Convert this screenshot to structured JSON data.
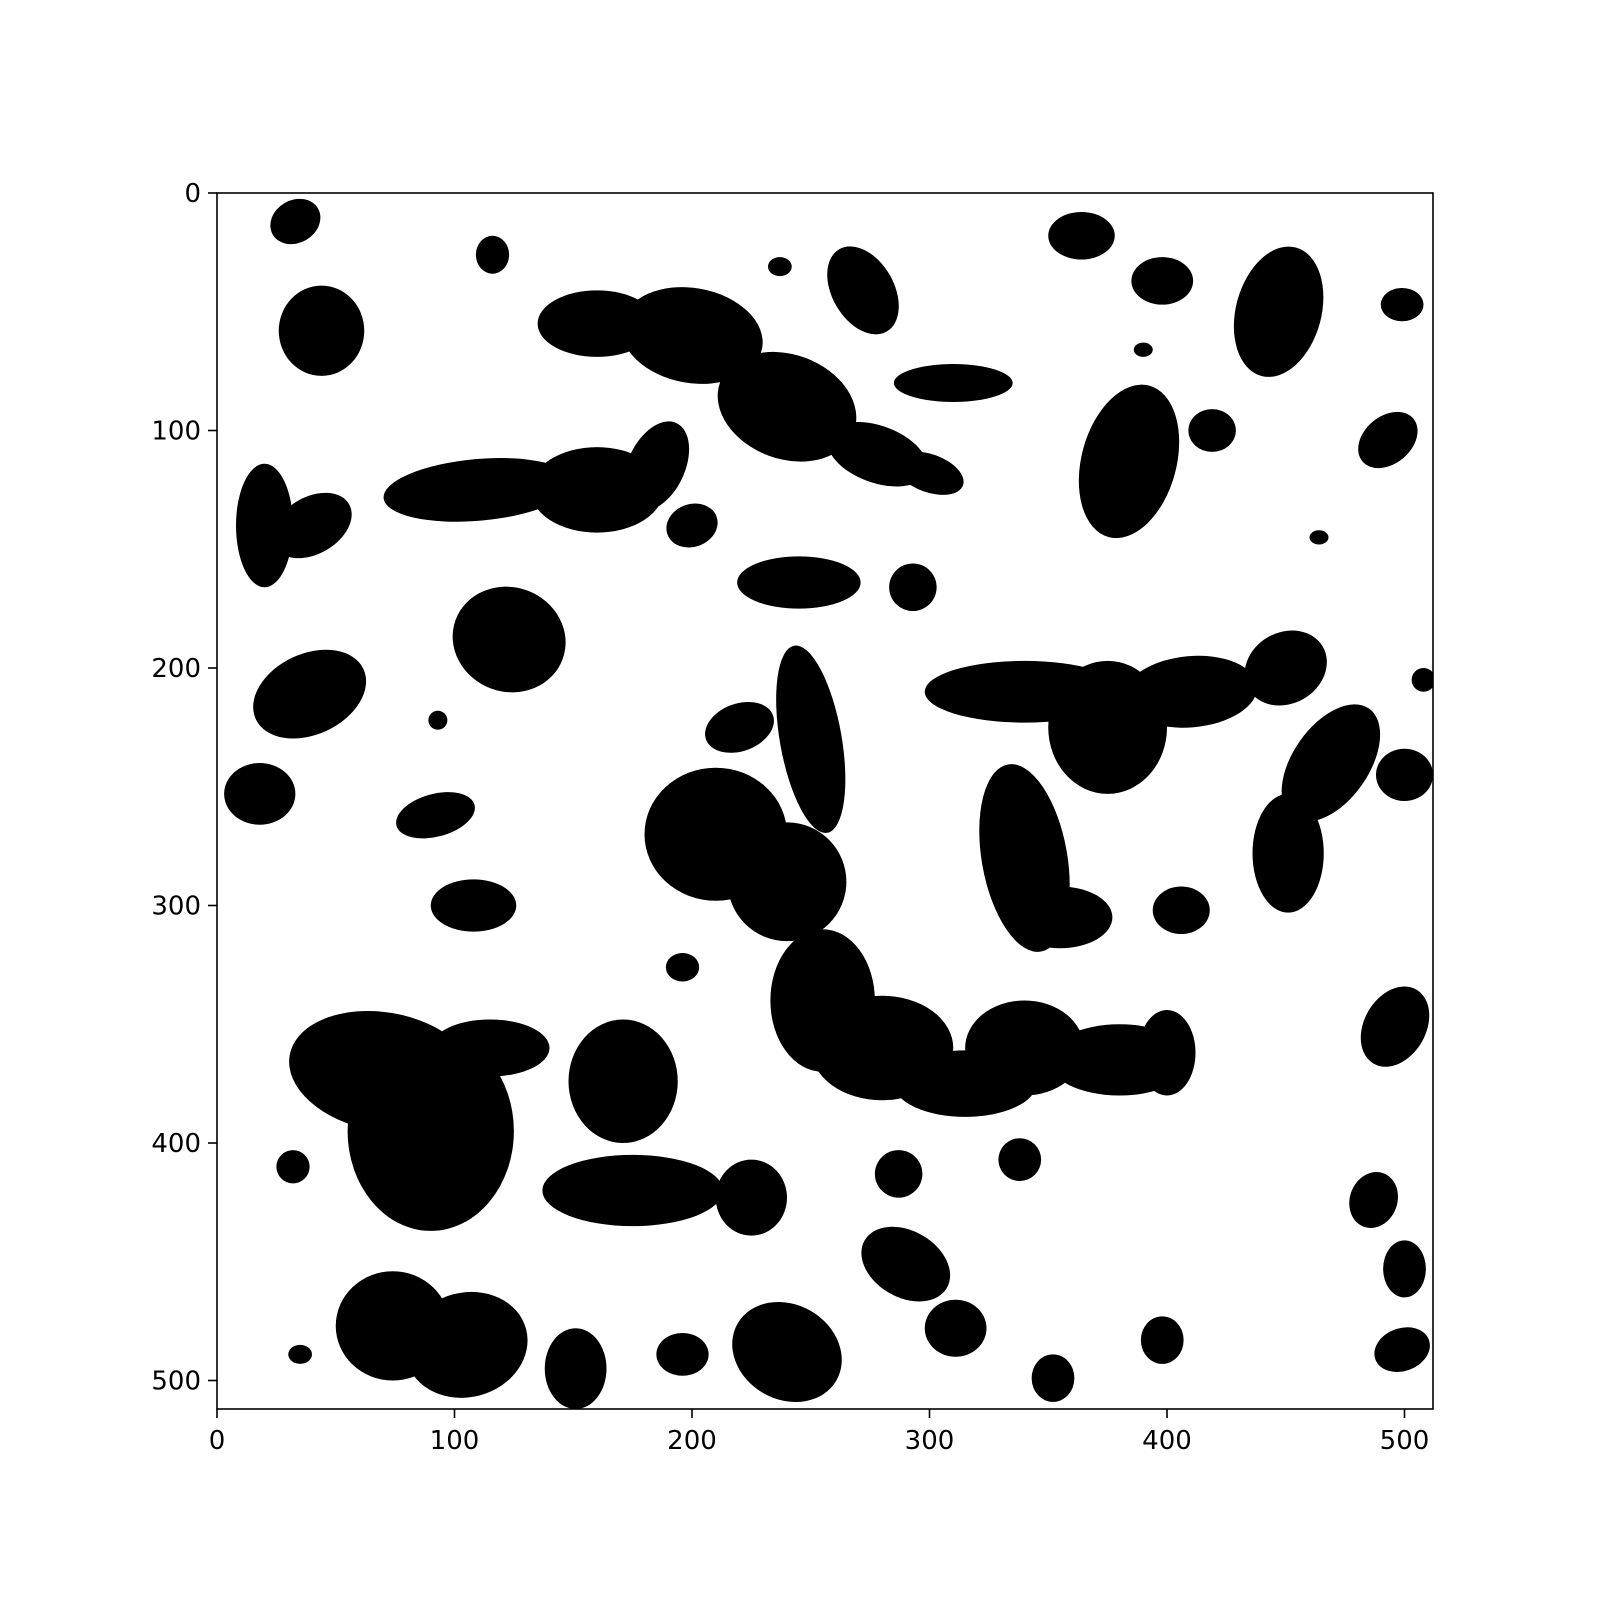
{
  "chart_data": {
    "type": "heatmap",
    "title": "",
    "xlabel": "",
    "ylabel": "",
    "xlim": [
      0,
      512
    ],
    "ylim": [
      512,
      0
    ],
    "x_ticks": [
      0,
      100,
      200,
      300,
      400,
      500
    ],
    "y_ticks": [
      0,
      100,
      200,
      300,
      400,
      500
    ],
    "x_tick_labels": [
      "0",
      "100",
      "200",
      "300",
      "400",
      "500"
    ],
    "y_tick_labels": [
      "0",
      "100",
      "200",
      "300",
      "400",
      "500"
    ],
    "colormap": "binary",
    "colors": {
      "foreground": "#000000",
      "background": "#ffffff"
    },
    "grid": false,
    "description_of_values": "binary 512x512 image; black regions (value 1) listed as approximate blobs in pixel units",
    "blobs": [
      {
        "cx": 33,
        "cy": 12,
        "rx": 11,
        "ry": 9,
        "rot": -30
      },
      {
        "cx": 116,
        "cy": 26,
        "rx": 7,
        "ry": 8,
        "rot": 0
      },
      {
        "cx": 44,
        "cy": 58,
        "rx": 18,
        "ry": 19,
        "rot": 0
      },
      {
        "cx": 237,
        "cy": 31,
        "rx": 5,
        "ry": 4,
        "rot": 0
      },
      {
        "cx": 272,
        "cy": 41,
        "rx": 13,
        "ry": 20,
        "rot": -30
      },
      {
        "cx": 364,
        "cy": 18,
        "rx": 14,
        "ry": 10,
        "rot": 0
      },
      {
        "cx": 398,
        "cy": 37,
        "rx": 13,
        "ry": 10,
        "rot": 0
      },
      {
        "cx": 447,
        "cy": 50,
        "rx": 18,
        "ry": 28,
        "rot": 15
      },
      {
        "cx": 499,
        "cy": 47,
        "rx": 9,
        "ry": 7,
        "rot": 0
      },
      {
        "cx": 390,
        "cy": 66,
        "rx": 4,
        "ry": 3,
        "rot": 0
      },
      {
        "cx": 160,
        "cy": 55,
        "rx": 25,
        "ry": 14,
        "rot": 0
      },
      {
        "cx": 200,
        "cy": 60,
        "rx": 30,
        "ry": 20,
        "rot": 10
      },
      {
        "cx": 240,
        "cy": 90,
        "rx": 30,
        "ry": 22,
        "rot": 20
      },
      {
        "cx": 278,
        "cy": 110,
        "rx": 22,
        "ry": 12,
        "rot": 20
      },
      {
        "cx": 300,
        "cy": 118,
        "rx": 15,
        "ry": 8,
        "rot": 20
      },
      {
        "cx": 310,
        "cy": 80,
        "rx": 25,
        "ry": 8,
        "rot": 0
      },
      {
        "cx": 384,
        "cy": 113,
        "rx": 20,
        "ry": 33,
        "rot": 15
      },
      {
        "cx": 419,
        "cy": 100,
        "rx": 10,
        "ry": 9,
        "rot": 0
      },
      {
        "cx": 493,
        "cy": 104,
        "rx": 14,
        "ry": 10,
        "rot": -40
      },
      {
        "cx": 464,
        "cy": 145,
        "rx": 4,
        "ry": 3,
        "rot": 0
      },
      {
        "cx": 20,
        "cy": 140,
        "rx": 12,
        "ry": 26,
        "rot": 0
      },
      {
        "cx": 40,
        "cy": 140,
        "rx": 18,
        "ry": 12,
        "rot": -30
      },
      {
        "cx": 110,
        "cy": 125,
        "rx": 40,
        "ry": 13,
        "rot": -5
      },
      {
        "cx": 160,
        "cy": 125,
        "rx": 28,
        "ry": 18,
        "rot": 0
      },
      {
        "cx": 185,
        "cy": 115,
        "rx": 12,
        "ry": 20,
        "rot": 25
      },
      {
        "cx": 200,
        "cy": 140,
        "rx": 11,
        "ry": 9,
        "rot": -20
      },
      {
        "cx": 245,
        "cy": 164,
        "rx": 26,
        "ry": 11,
        "rot": 0
      },
      {
        "cx": 293,
        "cy": 166,
        "rx": 10,
        "ry": 10,
        "rot": 0
      },
      {
        "cx": 123,
        "cy": 188,
        "rx": 24,
        "ry": 22,
        "rot": 20
      },
      {
        "cx": 39,
        "cy": 211,
        "rx": 25,
        "ry": 17,
        "rot": -25
      },
      {
        "cx": 93,
        "cy": 222,
        "rx": 4,
        "ry": 4,
        "rot": 0
      },
      {
        "cx": 18,
        "cy": 253,
        "rx": 15,
        "ry": 13,
        "rot": 0
      },
      {
        "cx": 92,
        "cy": 262,
        "rx": 17,
        "ry": 9,
        "rot": -15
      },
      {
        "cx": 108,
        "cy": 300,
        "rx": 18,
        "ry": 11,
        "rot": 0
      },
      {
        "cx": 196,
        "cy": 326,
        "rx": 7,
        "ry": 6,
        "rot": 0
      },
      {
        "cx": 250,
        "cy": 230,
        "rx": 13,
        "ry": 40,
        "rot": -10
      },
      {
        "cx": 220,
        "cy": 225,
        "rx": 15,
        "ry": 10,
        "rot": -20
      },
      {
        "cx": 210,
        "cy": 270,
        "rx": 30,
        "ry": 28,
        "rot": 0
      },
      {
        "cx": 240,
        "cy": 290,
        "rx": 25,
        "ry": 25,
        "rot": 0
      },
      {
        "cx": 255,
        "cy": 340,
        "rx": 22,
        "ry": 30,
        "rot": 0
      },
      {
        "cx": 280,
        "cy": 360,
        "rx": 30,
        "ry": 22,
        "rot": 0
      },
      {
        "cx": 315,
        "cy": 375,
        "rx": 30,
        "ry": 14,
        "rot": 0
      },
      {
        "cx": 340,
        "cy": 360,
        "rx": 25,
        "ry": 20,
        "rot": 0
      },
      {
        "cx": 380,
        "cy": 365,
        "rx": 30,
        "ry": 15,
        "rot": 0
      },
      {
        "cx": 400,
        "cy": 362,
        "rx": 12,
        "ry": 18,
        "rot": 0
      },
      {
        "cx": 340,
        "cy": 210,
        "rx": 42,
        "ry": 13,
        "rot": 0
      },
      {
        "cx": 375,
        "cy": 225,
        "rx": 25,
        "ry": 28,
        "rot": 0
      },
      {
        "cx": 410,
        "cy": 210,
        "rx": 28,
        "ry": 15,
        "rot": -5
      },
      {
        "cx": 450,
        "cy": 200,
        "rx": 18,
        "ry": 15,
        "rot": -30
      },
      {
        "cx": 508,
        "cy": 205,
        "rx": 5,
        "ry": 5,
        "rot": 0
      },
      {
        "cx": 469,
        "cy": 240,
        "rx": 16,
        "ry": 28,
        "rot": 35
      },
      {
        "cx": 451,
        "cy": 278,
        "rx": 15,
        "ry": 25,
        "rot": 0
      },
      {
        "cx": 500,
        "cy": 245,
        "rx": 12,
        "ry": 11,
        "rot": 0
      },
      {
        "cx": 340,
        "cy": 280,
        "rx": 18,
        "ry": 40,
        "rot": -10
      },
      {
        "cx": 355,
        "cy": 305,
        "rx": 22,
        "ry": 13,
        "rot": 0
      },
      {
        "cx": 406,
        "cy": 302,
        "rx": 12,
        "ry": 10,
        "rot": 0
      },
      {
        "cx": 70,
        "cy": 370,
        "rx": 40,
        "ry": 25,
        "rot": 10
      },
      {
        "cx": 90,
        "cy": 395,
        "rx": 35,
        "ry": 42,
        "rot": 0
      },
      {
        "cx": 115,
        "cy": 360,
        "rx": 25,
        "ry": 12,
        "rot": 0
      },
      {
        "cx": 32,
        "cy": 410,
        "rx": 7,
        "ry": 7,
        "rot": 0
      },
      {
        "cx": 171,
        "cy": 374,
        "rx": 23,
        "ry": 26,
        "rot": 0
      },
      {
        "cx": 175,
        "cy": 420,
        "rx": 38,
        "ry": 15,
        "rot": 0
      },
      {
        "cx": 225,
        "cy": 423,
        "rx": 15,
        "ry": 16,
        "rot": 0
      },
      {
        "cx": 287,
        "cy": 413,
        "rx": 10,
        "ry": 10,
        "rot": 0
      },
      {
        "cx": 338,
        "cy": 407,
        "rx": 9,
        "ry": 9,
        "rot": 0
      },
      {
        "cx": 496,
        "cy": 351,
        "rx": 13,
        "ry": 18,
        "rot": 30
      },
      {
        "cx": 487,
        "cy": 424,
        "rx": 10,
        "ry": 12,
        "rot": 20
      },
      {
        "cx": 500,
        "cy": 453,
        "rx": 9,
        "ry": 12,
        "rot": 0
      },
      {
        "cx": 290,
        "cy": 451,
        "rx": 20,
        "ry": 14,
        "rot": 30
      },
      {
        "cx": 74,
        "cy": 477,
        "rx": 24,
        "ry": 23,
        "rot": 0
      },
      {
        "cx": 105,
        "cy": 485,
        "rx": 26,
        "ry": 22,
        "rot": -15
      },
      {
        "cx": 35,
        "cy": 489,
        "rx": 5,
        "ry": 4,
        "rot": 0
      },
      {
        "cx": 151,
        "cy": 495,
        "rx": 13,
        "ry": 17,
        "rot": 0
      },
      {
        "cx": 196,
        "cy": 489,
        "rx": 11,
        "ry": 9,
        "rot": 0
      },
      {
        "cx": 240,
        "cy": 488,
        "rx": 24,
        "ry": 20,
        "rot": 30
      },
      {
        "cx": 311,
        "cy": 478,
        "rx": 13,
        "ry": 12,
        "rot": 0
      },
      {
        "cx": 352,
        "cy": 499,
        "rx": 9,
        "ry": 10,
        "rot": 0
      },
      {
        "cx": 398,
        "cy": 483,
        "rx": 9,
        "ry": 10,
        "rot": 0
      },
      {
        "cx": 499,
        "cy": 487,
        "rx": 12,
        "ry": 9,
        "rot": -20
      }
    ]
  }
}
